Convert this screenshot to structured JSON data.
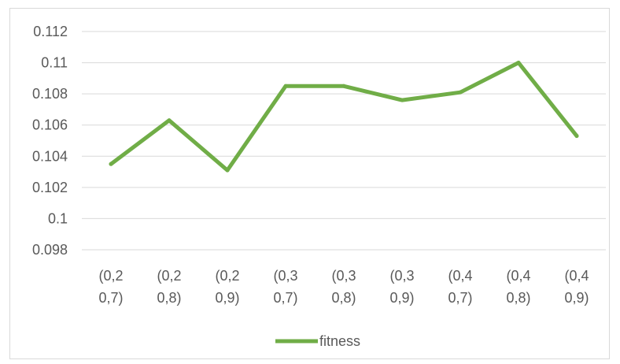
{
  "chart_data": {
    "type": "line",
    "categories": [
      [
        "(0,2",
        "0,7)"
      ],
      [
        "(0,2",
        "0,8)"
      ],
      [
        "(0,2",
        "0,9)"
      ],
      [
        "(0,3",
        "0,7)"
      ],
      [
        "(0,3",
        "0,8)"
      ],
      [
        "(0,3",
        "0,9)"
      ],
      [
        "(0,4",
        "0,7)"
      ],
      [
        "(0,4",
        "0,8)"
      ],
      [
        "(0,4",
        "0,9)"
      ]
    ],
    "series": [
      {
        "name": "fitness",
        "color": "#70ad47",
        "values": [
          0.1035,
          0.1063,
          0.1031,
          0.1085,
          0.1085,
          0.1076,
          0.1081,
          0.11,
          0.1053
        ]
      }
    ],
    "yticks": [
      "0.098",
      "0.1",
      "0.102",
      "0.104",
      "0.106",
      "0.108",
      "0.11",
      "0.112"
    ],
    "ylim": [
      0.098,
      0.112
    ],
    "grid": true,
    "legend": "bottom",
    "colors": {
      "grid": "#d9d9d9",
      "text": "#595959",
      "line": "#70ad47"
    }
  }
}
